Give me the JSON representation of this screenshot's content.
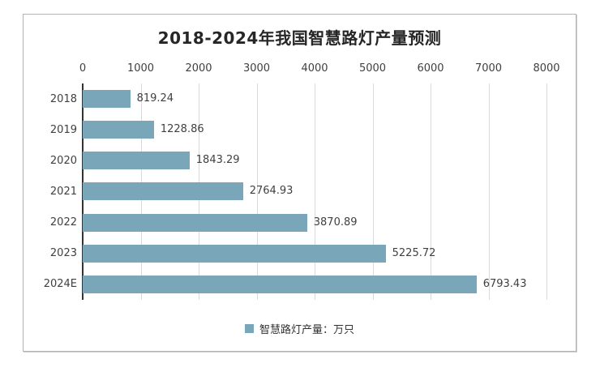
{
  "chart_data": {
    "type": "bar",
    "orientation": "horizontal",
    "title": "2018-2024年我国智慧路灯产量预测",
    "categories": [
      "2018",
      "2019",
      "2020",
      "2021",
      "2022",
      "2023",
      "2024E"
    ],
    "values": [
      819.24,
      1228.86,
      1843.29,
      2764.93,
      3870.89,
      5225.72,
      6793.43
    ],
    "value_labels": [
      "819.24",
      "1228.86",
      "1843.29",
      "2764.93",
      "3870.89",
      "5225.72",
      "6793.43"
    ],
    "x_axis": {
      "position": "top",
      "min": 0,
      "max": 8000,
      "tick_step": 1000,
      "ticks": [
        0,
        1000,
        2000,
        3000,
        4000,
        5000,
        6000,
        7000,
        8000
      ]
    },
    "grid": true,
    "legend": {
      "position": "bottom",
      "entries": [
        {
          "label": "智慧路灯产量：万只",
          "marker": "square",
          "color": "#7AA6BA"
        }
      ]
    },
    "bar_color": "#7AA6BA"
  },
  "colors": {
    "bar": "#7AA6BA",
    "gridline": "#D9D9D9",
    "axis_line": "#333333",
    "tick_text": "#404040",
    "title_text": "#262626",
    "frame_border": "#B3B3B3",
    "background": "#FFFFFF"
  }
}
